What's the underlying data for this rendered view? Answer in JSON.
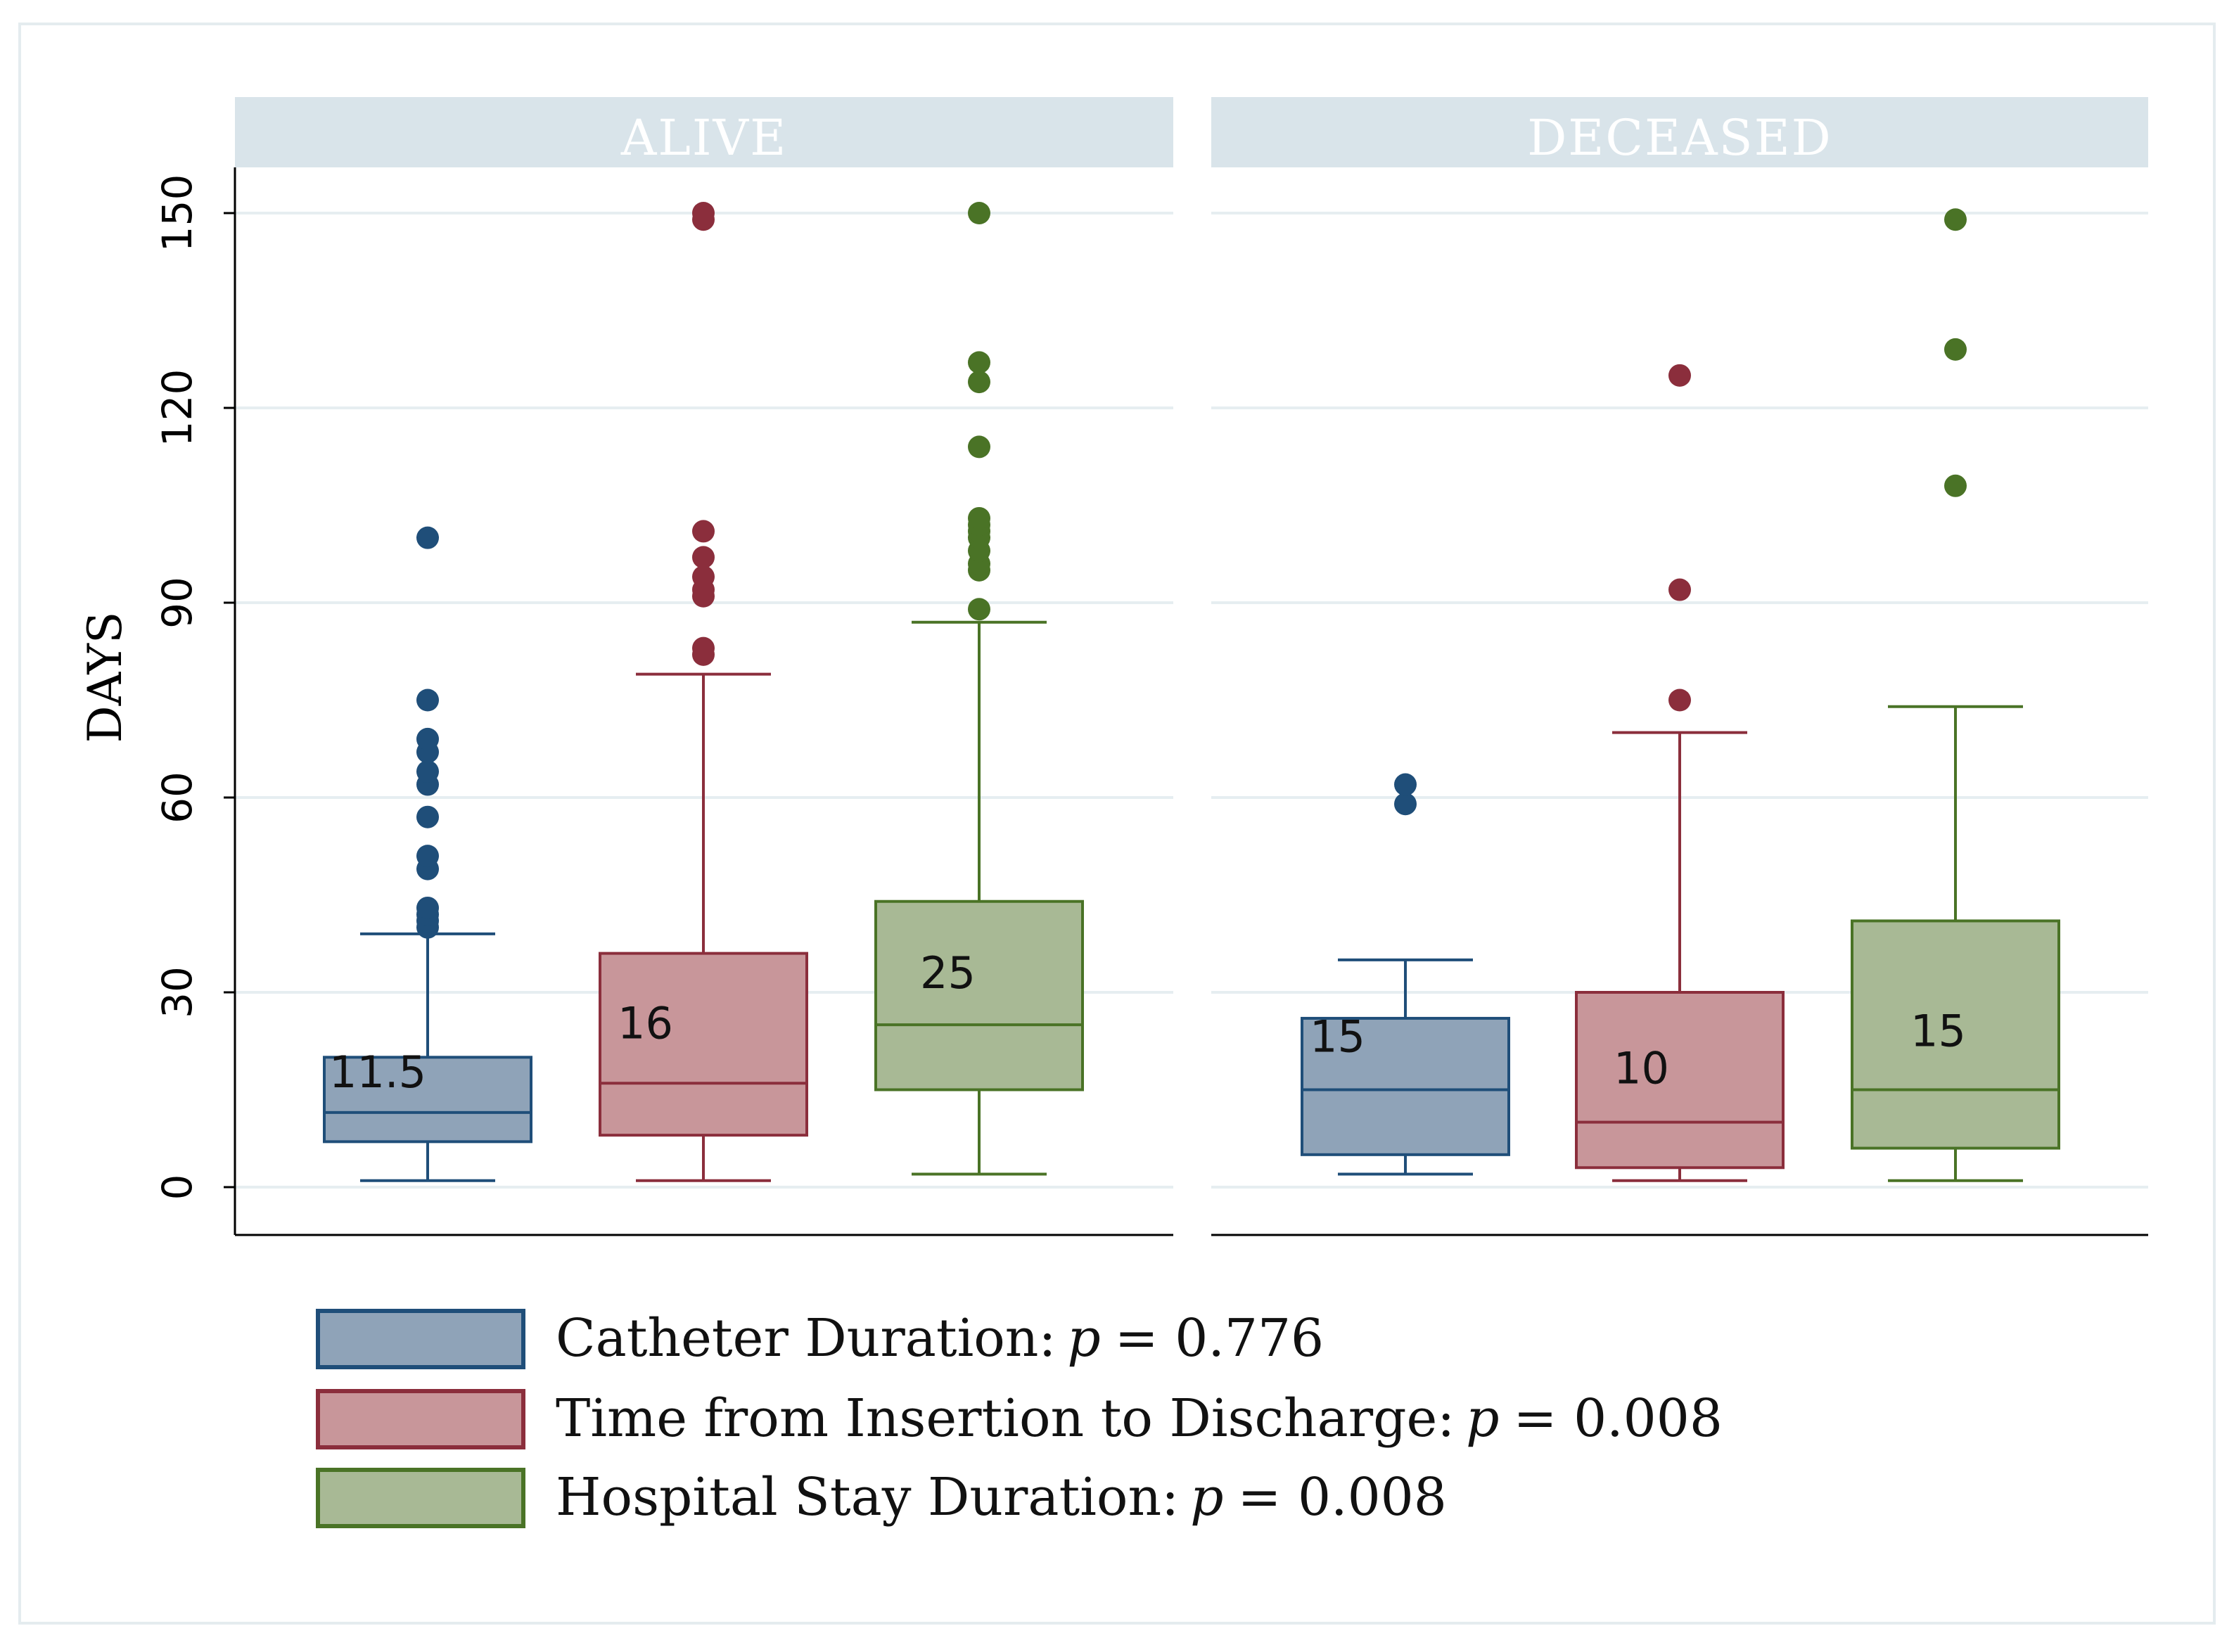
{
  "chart_data": {
    "type": "box",
    "ylabel": "DAYS",
    "ylim": [
      0,
      150
    ],
    "yticks": [
      0,
      30,
      60,
      90,
      120,
      150
    ],
    "grid": true,
    "panels": [
      {
        "label": "ALIVE",
        "boxes": [
          {
            "series": "catheter",
            "whisker_low": 1,
            "q1": 7,
            "median": 11.5,
            "q3": 20,
            "whisker_high": 39,
            "median_label": "11.5",
            "outliers": [
              40,
              41,
              42,
              43,
              49,
              51,
              57,
              62,
              64,
              67,
              69,
              75,
              100
            ]
          },
          {
            "series": "insertion",
            "whisker_low": 1,
            "q1": 8,
            "median": 16,
            "q3": 36,
            "whisker_high": 79,
            "median_label": "16",
            "outliers": [
              82,
              83,
              91,
              92,
              94,
              97,
              101,
              149,
              150
            ]
          },
          {
            "series": "hospital",
            "whisker_low": 2,
            "q1": 15,
            "median": 25,
            "q3": 44,
            "whisker_high": 87,
            "median_label": "25",
            "outliers": [
              89,
              95,
              96,
              98,
              100,
              101,
              102,
              103,
              114,
              124,
              127,
              150
            ]
          }
        ]
      },
      {
        "label": "DECEASED",
        "boxes": [
          {
            "series": "catheter",
            "whisker_low": 2,
            "q1": 5,
            "median": 15,
            "q3": 26,
            "whisker_high": 35,
            "median_label": "15",
            "outliers": [
              59,
              62
            ]
          },
          {
            "series": "insertion",
            "whisker_low": 1,
            "q1": 3,
            "median": 10,
            "q3": 30,
            "whisker_high": 70,
            "median_label": "10",
            "outliers": [
              75,
              92,
              125
            ]
          },
          {
            "series": "hospital",
            "whisker_low": 1,
            "q1": 6,
            "median": 15,
            "q3": 41,
            "whisker_high": 74,
            "median_label": "15",
            "outliers": [
              108,
              129,
              149
            ]
          }
        ]
      }
    ],
    "series": [
      {
        "key": "catheter",
        "name": "Catheter Duration:",
        "p_symbol": "p",
        "p_value": "= 0.776",
        "fill": "#8fa3b8",
        "stroke": "#1f4e79"
      },
      {
        "key": "insertion",
        "name": "Time from Insertion to Discharge:",
        "p_symbol": "p",
        "p_value": "= 0.008",
        "fill": "#c8969a",
        "stroke": "#8b2e3c"
      },
      {
        "key": "hospital",
        "name": "Hospital Stay Duration:",
        "p_symbol": "p",
        "p_value": "= 0.008",
        "fill": "#a8b995",
        "stroke": "#4a7326"
      }
    ],
    "legend_position": "bottom",
    "colors": {
      "strip": "#d9e4ea",
      "strip_text": "#ffffff",
      "grid": "#e6eef1",
      "frame": "#e4ecef"
    }
  }
}
